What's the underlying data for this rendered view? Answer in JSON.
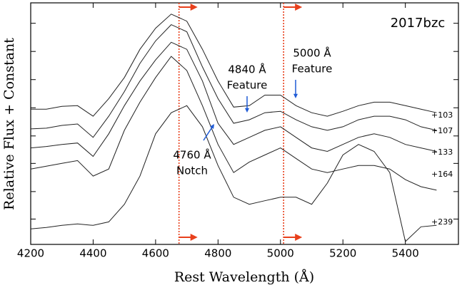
{
  "chart_data": {
    "type": "line",
    "title": "2017bzc",
    "x_label": "Rest Wavelength (Å)",
    "y_label": "Relative Flux + Constant",
    "x": [
      4200,
      4250,
      4300,
      4350,
      4400,
      4450,
      4500,
      4550,
      4600,
      4650,
      4700,
      4750,
      4800,
      4850,
      4900,
      4950,
      5000,
      5050,
      5100,
      5150,
      5200,
      5250,
      5300,
      5350,
      5400,
      5450,
      5500
    ],
    "series": [
      {
        "name": "+103",
        "color": "#222222",
        "values": [
          192,
          192,
          196,
          197,
          182,
          207,
          237,
          277,
          307,
          327,
          317,
          277,
          232,
          195,
          197,
          212,
          212,
          197,
          187,
          182,
          189,
          197,
          202,
          202,
          197,
          192,
          187
        ]
      },
      {
        "name": "+107",
        "color": "#222222",
        "values": [
          164,
          165,
          169,
          171,
          152,
          182,
          217,
          257,
          289,
          312,
          302,
          252,
          207,
          172,
          177,
          187,
          189,
          177,
          167,
          162,
          167,
          177,
          182,
          182,
          177,
          167,
          162
        ]
      },
      {
        "name": "+133",
        "color": "#222222",
        "values": [
          137,
          139,
          142,
          144,
          125,
          157,
          197,
          232,
          262,
          287,
          277,
          232,
          172,
          142,
          152,
          162,
          167,
          152,
          137,
          132,
          142,
          152,
          157,
          152,
          142,
          137,
          132
        ]
      },
      {
        "name": "+164",
        "color": "#222222",
        "values": [
          107,
          111,
          115,
          119,
          97,
          107,
          162,
          202,
          237,
          267,
          247,
          197,
          142,
          102,
          117,
          127,
          137,
          122,
          107,
          102,
          107,
          112,
          112,
          107,
          92,
          82,
          77
        ]
      },
      {
        "name": "+239",
        "color": "#222222",
        "values": [
          22,
          24,
          27,
          29,
          27,
          32,
          57,
          97,
          157,
          187,
          197,
          167,
          112,
          67,
          57,
          62,
          67,
          67,
          57,
          87,
          127,
          142,
          132,
          102,
          4,
          25,
          27
        ]
      }
    ],
    "xlim": [
      4200,
      5570
    ],
    "xticks": [
      4200,
      4400,
      4600,
      4800,
      5000,
      5200,
      5400
    ],
    "ylim": [
      0,
      343
    ],
    "yticks": [
      36,
      75,
      115,
      154,
      194,
      234,
      274,
      314
    ],
    "reference_lines": [
      4675,
      5010
    ],
    "reference_color": "#e8401c",
    "annotation_color": "#1f5bd6",
    "annotations": [
      {
        "lines": [
          "4840 Å",
          "Feature"
        ]
      },
      {
        "lines": [
          "5000 Å",
          "Feature"
        ]
      },
      {
        "lines": [
          "4760 Å",
          "Notch"
        ]
      }
    ]
  }
}
